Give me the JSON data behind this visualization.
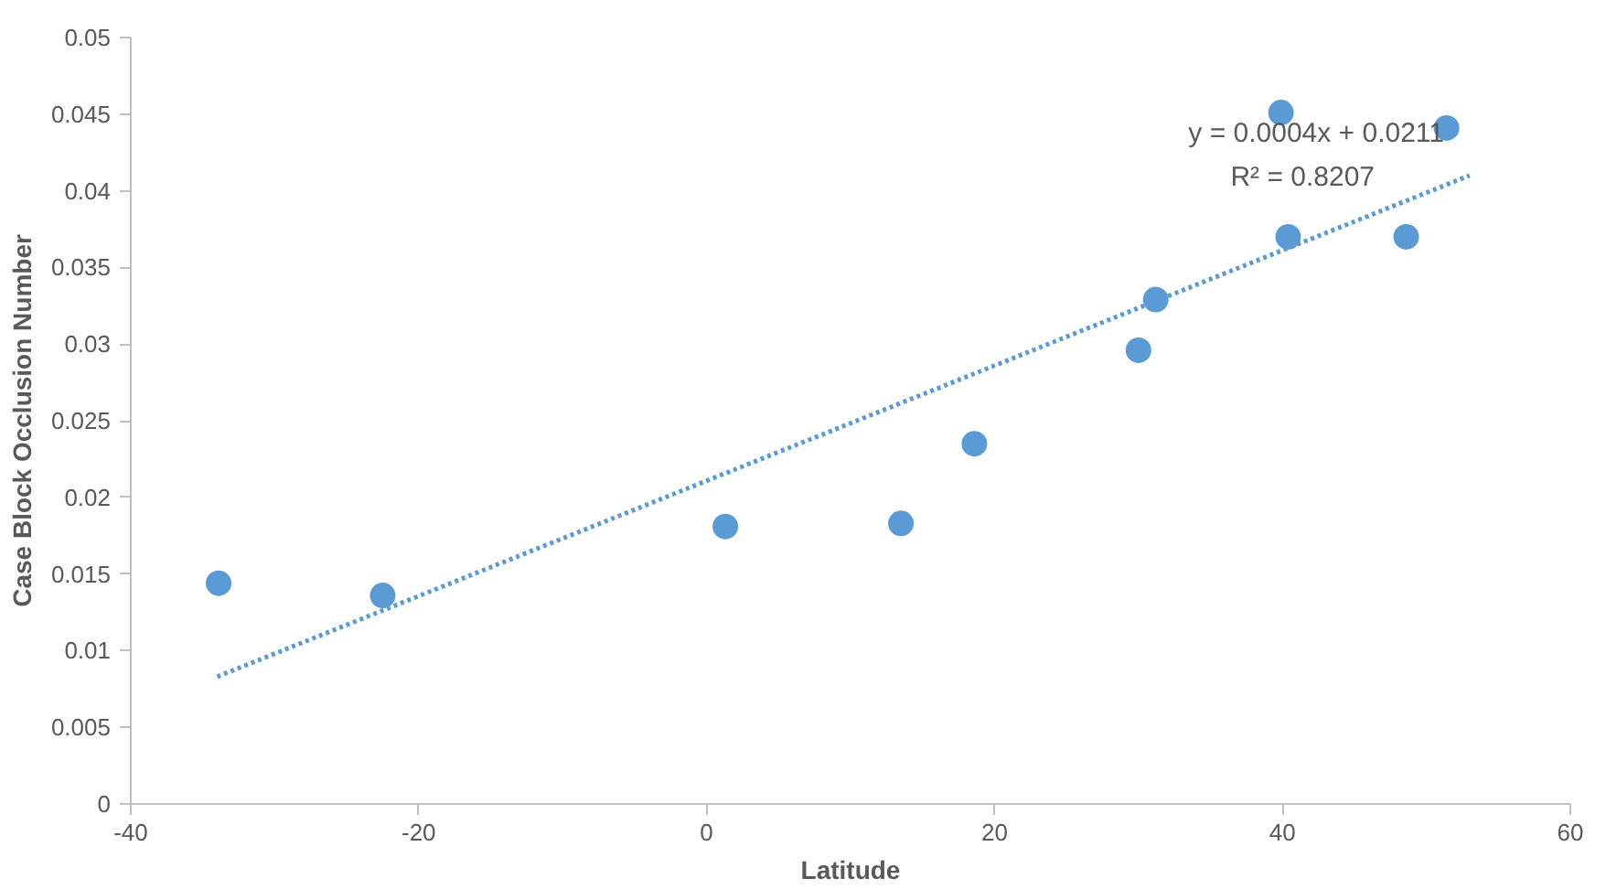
{
  "chart_data": {
    "type": "scatter",
    "xlabel": "Latitude",
    "ylabel": "Case Block Occlusion Number",
    "x": [
      -33.9,
      -22.5,
      1.3,
      13.5,
      18.6,
      30.0,
      31.2,
      39.9,
      40.4,
      48.6,
      51.4
    ],
    "series": [
      {
        "color": "#5b9bd5",
        "values": [
          0.0144,
          0.0136,
          0.0181,
          0.0183,
          0.0235,
          0.0296,
          0.0329,
          0.0451,
          0.037,
          0.037,
          0.0441
        ],
        "marker": "circle"
      },
      {
        "type": "line",
        "color": "#5b9bd5",
        "x": [
          -34,
          53
        ],
        "values": [
          0.0083,
          0.041
        ],
        "line_style": "dotted"
      }
    ],
    "annotations": [
      "y = 0.0004x + 0.0211",
      "R² = 0.8207"
    ],
    "xlim": [
      -40,
      60
    ],
    "xticks": [
      -40,
      -20,
      0,
      20,
      40,
      60
    ],
    "ylim": [
      0,
      0.05
    ],
    "yticks": [
      0,
      0.005,
      0.01,
      0.015,
      0.02,
      0.025,
      0.03,
      0.035,
      0.04,
      0.045,
      0.05
    ],
    "grid": false
  }
}
